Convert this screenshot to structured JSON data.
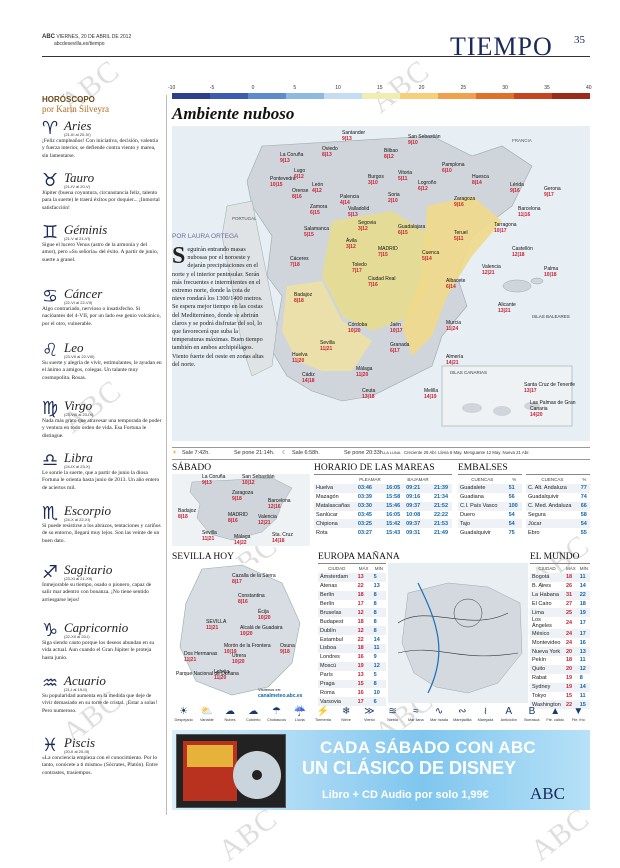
{
  "header": {
    "paper": "ABC",
    "date": "VIERNES, 20 DE ABRIL DE 2012",
    "web": "abcdesevilla.es/tiempo",
    "section": "TIEMPO",
    "page": "35",
    "watermark": "ABC"
  },
  "horoscope": {
    "title": "HORÓSCOPO",
    "author": "por Karin Silveyra",
    "signs": [
      {
        "symbol": "♈",
        "name": "Aries",
        "dates": "(21-III al 20-IV)",
        "text": "¡Feliz cumpleaños! Con iniciativa, decisión, valentía y fuerza interior, se defiende contra viento y marea, sin lamentarse."
      },
      {
        "symbol": "♉",
        "name": "Tauro",
        "dates": "(21-IV al 20-V)",
        "text": "Júpiter (buena coyuntura, circunstancia feliz, talento para la suerte) le traerá éxitos por doquier... ¡Inmortal satisfacción!"
      },
      {
        "symbol": "♊",
        "name": "Géminis",
        "dates": "(21-V al 21-VI)",
        "text": "Sigue el lucero Venus (astro de la armonía y del amor), pero «Su señoría» del éxito. A partir de junio, suerte a granel."
      },
      {
        "symbol": "♋",
        "name": "Cáncer",
        "dates": "(22-VI al 22-VII)",
        "text": "Algo contrariado, nervioso o insatisfecho. Si nacióantes del 4-VII, por un lado ese genio volcánico, por el otro, vulnerable."
      },
      {
        "symbol": "♌",
        "name": "Leo",
        "dates": "(23-VII al 22-VIII)",
        "text": "Su suerte y alegría de vivir, estimulantes, le ayudan en el ánimo a amigos, colegas. Un talante muy cosmopolita. Rosas."
      },
      {
        "symbol": "♍",
        "name": "Virgo",
        "dates": "(23-VIII al 23-IX)",
        "text": "Nada más grato que atravesar una temporada de poder y ventura en todo orden de vida. Esa Fortuna le distingue."
      },
      {
        "symbol": "♎",
        "name": "Libra",
        "dates": "(24-IX al 23-X)",
        "text": "Le sonríe la suerte, que a partir de junio la diosa Fortuna le orienta hasta junio de 2013. Un año entero de aciertos mil."
      },
      {
        "symbol": "♏",
        "name": "Escorpio",
        "dates": "(24-X al 22-XI)",
        "text": "Si puede resistirse a los abrazos, tentaciones y cariños de su entorno, llegará muy lejos. Son las veinte de un buen dato."
      },
      {
        "symbol": "♐",
        "name": "Sagitario",
        "dates": "(23-XI al 21-XII)",
        "text": "Inmejorable su tiempo, osado o pionero, capaz de salir mar adentro con bonanza. ¡No tiene sentido arriesgarse lejos!"
      },
      {
        "symbol": "♑",
        "name": "Capricornio",
        "dates": "(22-XII al 20-I)",
        "text": "Siga siendo cauto porque los deseos abundan en su vida actual. Aun cuando el Gran Júpiter le proteja hasta junio."
      },
      {
        "symbol": "♒",
        "name": "Acuario",
        "dates": "(21-I al 19-II)",
        "text": "Su popularidad aumenta en la medida que deje de vivir demasiado en su torre de cristal. ¡Estar a solas! Pero numeroso."
      },
      {
        "symbol": "♓",
        "name": "Piscis",
        "dates": "(20-II al 20-III)",
        "text": "«La conciencia empieza con el conocimiento. Por lo tanto, conócete a ti mismo» (Sócrates, Platón). Entre contrastes, trasiempos."
      }
    ]
  },
  "scale": {
    "labels": [
      "-10",
      "-5",
      "0",
      "5",
      "10",
      "15",
      "20",
      "25",
      "30",
      "35",
      "40"
    ],
    "colors": [
      "#2d3e8c",
      "#3b5cb0",
      "#5c8ccd",
      "#8fb9e0",
      "#c4dcef",
      "#f3ebb0",
      "#f5cf7a",
      "#efa14d",
      "#e0712d",
      "#c8431f",
      "#9c2a18"
    ]
  },
  "map": {
    "headline": "Ambiente nuboso",
    "labels": {
      "francia": "FRANCIA",
      "portugal": "PORTUGAL",
      "baleares": "ISLAS BALEARES",
      "canarias": "ISLAS CANARIAS"
    },
    "cities": [
      {
        "name": "Santander",
        "temps": "9|13"
      },
      {
        "name": "San Sebastián",
        "temps": "9|10"
      },
      {
        "name": "La Coruña",
        "temps": "9|13"
      },
      {
        "name": "Oviedo",
        "temps": "8|13"
      },
      {
        "name": "Bilbao",
        "temps": "8|12"
      },
      {
        "name": "Lugo",
        "temps": "6|12"
      },
      {
        "name": "Vitoria",
        "temps": "5|11"
      },
      {
        "name": "Pamplona",
        "temps": "6|10"
      },
      {
        "name": "Pontevedra",
        "temps": "10|15"
      },
      {
        "name": "León",
        "temps": "4|12"
      },
      {
        "name": "Burgos",
        "temps": "3|10"
      },
      {
        "name": "Logroño",
        "temps": "6|12"
      },
      {
        "name": "Huesca",
        "temps": "8|14"
      },
      {
        "name": "Lérida",
        "temps": "9|16"
      },
      {
        "name": "Gerona",
        "temps": "9|17"
      },
      {
        "name": "Orense",
        "temps": "8|16"
      },
      {
        "name": "Palencia",
        "temps": "4|14"
      },
      {
        "name": "Soria",
        "temps": "2|10"
      },
      {
        "name": "Zaragoza",
        "temps": "9|16"
      },
      {
        "name": "Barcelona",
        "temps": "11|16"
      },
      {
        "name": "Zamora",
        "temps": "6|15"
      },
      {
        "name": "Valladolid",
        "temps": "5|13"
      },
      {
        "name": "Tarragona",
        "temps": "10|17"
      },
      {
        "name": "Salamanca",
        "temps": "5|15"
      },
      {
        "name": "Segovia",
        "temps": "3|12"
      },
      {
        "name": "Guadalajara",
        "temps": "6|15"
      },
      {
        "name": "Teruel",
        "temps": "5|11"
      },
      {
        "name": "Ávila",
        "temps": "3|12"
      },
      {
        "name": "MADRID",
        "temps": "7|15"
      },
      {
        "name": "Castellón",
        "temps": "12|18"
      },
      {
        "name": "Cáceres",
        "temps": "7|18"
      },
      {
        "name": "Toledo",
        "temps": "7|17"
      },
      {
        "name": "Cuenca",
        "temps": "5|14"
      },
      {
        "name": "Valencia",
        "temps": "12|21"
      },
      {
        "name": "Palma",
        "temps": "10|18"
      },
      {
        "name": "Badajoz",
        "temps": "8|18"
      },
      {
        "name": "Ciudad Real",
        "temps": "7|16"
      },
      {
        "name": "Albacete",
        "temps": "6|14"
      },
      {
        "name": "Alicante",
        "temps": "13|21"
      },
      {
        "name": "Córdoba",
        "temps": "10|20"
      },
      {
        "name": "Jaén",
        "temps": "10|17"
      },
      {
        "name": "Murcia",
        "temps": "11|24"
      },
      {
        "name": "Huelva",
        "temps": "11|20"
      },
      {
        "name": "Sevilla",
        "temps": "11|21"
      },
      {
        "name": "Granada",
        "temps": "6|17"
      },
      {
        "name": "Almería",
        "temps": "14|21"
      },
      {
        "name": "Cádiz",
        "temps": "14|18"
      },
      {
        "name": "Málaga",
        "temps": "11|20"
      },
      {
        "name": "Ceuta",
        "temps": "13|18"
      },
      {
        "name": "Melilla",
        "temps": "14|19"
      },
      {
        "name": "Santa Cruz de Tenerife",
        "temps": "13|17"
      },
      {
        "name": "Las Palmas de Gran Canaria",
        "temps": "14|20"
      }
    ]
  },
  "article": {
    "byline": "POR LAURA ORTEGA",
    "dropcap": "S",
    "text": "eguirán entrando masas nubosas por el noroeste y dejarán precipitaciones en el norte y el interior peninsular. Serán más frecuentes e intermitentes en el extremo norte, donde la cota de nieve rondará los 1300/1400 metros. Se espera mejor tiempo en las costas del Mediterráneo, donde se abrirán claros y se podrá disfrutar del sol, lo que favorecerá que suba la temperaturas máximas. Buen tiempo también en ambos archipiélagos. Viento fuerte del oeste en zonas altas del norte."
  },
  "sunbar": {
    "sale_sol": "Sale 7:42h.",
    "se_pone_sol": "Se pone 21:14h.",
    "sale_luna": "Sale 6:58h.",
    "se_pone_luna": "Se pone 20:33h.",
    "luna_label": "LA LUNA",
    "phases": "Creciente 29 Abr.  Llena 6 May.  Menguante 12 May.  Nueva 21 Abr."
  },
  "sabado": {
    "title": "SÁBADO",
    "cities": [
      {
        "name": "La Coruña",
        "temps": "9|13"
      },
      {
        "name": "San Sebastián",
        "temps": "10|12"
      },
      {
        "name": "Zaragoza",
        "temps": "9|18"
      },
      {
        "name": "Barcelona",
        "temps": "12|16"
      },
      {
        "name": "Badajoz",
        "temps": "8|18"
      },
      {
        "name": "MADRID",
        "temps": "8|16"
      },
      {
        "name": "Valencia",
        "temps": "12|21"
      },
      {
        "name": "Sevilla",
        "temps": "11|21"
      },
      {
        "name": "Málaga",
        "temps": "14|22"
      },
      {
        "name": "Sta. Cruz",
        "temps": "14|18"
      }
    ]
  },
  "mareas": {
    "title": "HORARIO DE LAS MAREAS",
    "head": [
      "",
      "PLEAMAR",
      "",
      "BAJAMAR",
      ""
    ],
    "rows": [
      [
        "Huelva",
        "03:46",
        "16:05",
        "09:21",
        "21:39"
      ],
      [
        "Mazagón",
        "03:39",
        "15:58",
        "09:16",
        "21:34"
      ],
      [
        "Matalascañas",
        "03:30",
        "15:46",
        "09:37",
        "21:52"
      ],
      [
        "Sanlúcar",
        "03:45",
        "16:05",
        "10:08",
        "22:22"
      ],
      [
        "Chipiona",
        "03:25",
        "15:42",
        "09:37",
        "21:53"
      ],
      [
        "Rota",
        "03:27",
        "15:43",
        "09:31",
        "21:49"
      ]
    ]
  },
  "embalses": {
    "title": "EMBALSES",
    "head1": [
      "CUENCAS",
      "%"
    ],
    "rows1": [
      [
        "Guadalete",
        "51"
      ],
      [
        "Guadiana",
        "56"
      ],
      [
        "C.I. País Vasco",
        "100"
      ],
      [
        "Duero",
        "54"
      ],
      [
        "Tajo",
        "54"
      ],
      [
        "Guadalquivir",
        "75"
      ]
    ],
    "head2": [
      "CUENCAS",
      "%"
    ],
    "rows2": [
      [
        "C. Alt. Andaluza",
        "77"
      ],
      [
        "Guadalquivir",
        "74"
      ],
      [
        "C. Med. Andaluza",
        "66"
      ],
      [
        "Segura",
        "58"
      ],
      [
        "Júcar",
        "54"
      ],
      [
        "Ebro",
        "55"
      ]
    ]
  },
  "sevilla": {
    "title": "SEVILLA HOY",
    "cities": [
      {
        "name": "Cazalla de la Sierra",
        "temps": "8|17"
      },
      {
        "name": "Constantina",
        "temps": "8|16"
      },
      {
        "name": "Écija",
        "temps": "10|20"
      },
      {
        "name": "SEVILLA",
        "temps": "11|21"
      },
      {
        "name": "Alcalá de Guadaira",
        "temps": "10|20"
      },
      {
        "name": "Morón de la Frontera",
        "temps": "10|19"
      },
      {
        "name": "Osuna",
        "temps": "9|18"
      },
      {
        "name": "Dos Hermanas",
        "temps": "11|21"
      },
      {
        "name": "Utrera",
        "temps": "10|20"
      },
      {
        "name": "Lebrija",
        "temps": "11|20"
      },
      {
        "name": "Parque Nacional de Doñana",
        "temps": ""
      }
    ],
    "credit_label": "Visítenos en:",
    "credit": "canalmeteo.abc.es"
  },
  "europa": {
    "title": "EUROPA MAÑANA",
    "head": [
      "CIUDAD",
      "MÁX",
      "MÍN"
    ],
    "rows": [
      [
        "Ámsterdam",
        "13",
        "5"
      ],
      [
        "Atenas",
        "22",
        "13"
      ],
      [
        "Berlín",
        "18",
        "8"
      ],
      [
        "Berlín",
        "17",
        "8"
      ],
      [
        "Bruselas",
        "12",
        "8"
      ],
      [
        "Budapest",
        "18",
        "8"
      ],
      [
        "Dublín",
        "12",
        "8"
      ],
      [
        "Estambul",
        "22",
        "14"
      ],
      [
        "Lisboa",
        "18",
        "11"
      ],
      [
        "Londres",
        "16",
        "9"
      ],
      [
        "Moscú",
        "19",
        "12"
      ],
      [
        "París",
        "13",
        "5"
      ],
      [
        "Praga",
        "15",
        "8"
      ],
      [
        "Roma",
        "16",
        "10"
      ],
      [
        "Varsovia",
        "17",
        "6"
      ]
    ]
  },
  "mundo": {
    "title": "EL MUNDO",
    "head": [
      "CIUDAD",
      "MÁX",
      "MÍN"
    ],
    "rows": [
      [
        "Bogotá",
        "18",
        "11"
      ],
      [
        "B. Aires",
        "26",
        "14"
      ],
      [
        "La Habana",
        "31",
        "22"
      ],
      [
        "El Cairo",
        "27",
        "18"
      ],
      [
        "Lima",
        "25",
        "19"
      ],
      [
        "Los Ángeles",
        "24",
        "17"
      ],
      [
        "México",
        "24",
        "17"
      ],
      [
        "Montevideo",
        "24",
        "16"
      ],
      [
        "Nueva York",
        "20",
        "13"
      ],
      [
        "Pekín",
        "18",
        "11"
      ],
      [
        "Quito",
        "20",
        "12"
      ],
      [
        "Rabat",
        "19",
        "8"
      ],
      [
        "Sydney",
        "19",
        "14"
      ],
      [
        "Tokyo",
        "15",
        "11"
      ],
      [
        "Washington",
        "22",
        "15"
      ]
    ]
  },
  "legend": [
    {
      "glyph": "☀",
      "label": "Despejado"
    },
    {
      "glyph": "⛅",
      "label": "Variable"
    },
    {
      "glyph": "☁",
      "label": "Nubes"
    },
    {
      "glyph": "☁",
      "label": "Cubierto"
    },
    {
      "glyph": "☂",
      "label": "Chubascos"
    },
    {
      "glyph": "☔",
      "label": "Lluvia"
    },
    {
      "glyph": "⚡",
      "label": "Tormenta"
    },
    {
      "glyph": "❄",
      "label": "Nieve"
    },
    {
      "glyph": "≫",
      "label": "Viento"
    },
    {
      "glyph": "≋",
      "label": "Niebla"
    },
    {
      "glyph": "≈",
      "label": "Mar llana"
    },
    {
      "glyph": "∿",
      "label": "Mar rizada"
    },
    {
      "glyph": "∾",
      "label": "Marejadilla"
    },
    {
      "glyph": "≀",
      "label": "Marejada"
    },
    {
      "glyph": "A",
      "label": "Anticiclón"
    },
    {
      "glyph": "B",
      "label": "Borrasca"
    },
    {
      "glyph": "▲",
      "label": "Fte. cálido"
    },
    {
      "glyph": "▼",
      "label": "Fte. frío"
    }
  ],
  "ad": {
    "line1": "CADA SÁBADO CON ABC",
    "line2": "UN CLÁSICO DE DISNEY",
    "line3": "Libro + CD Audio por solo 1,99€",
    "brand": "ABC"
  }
}
